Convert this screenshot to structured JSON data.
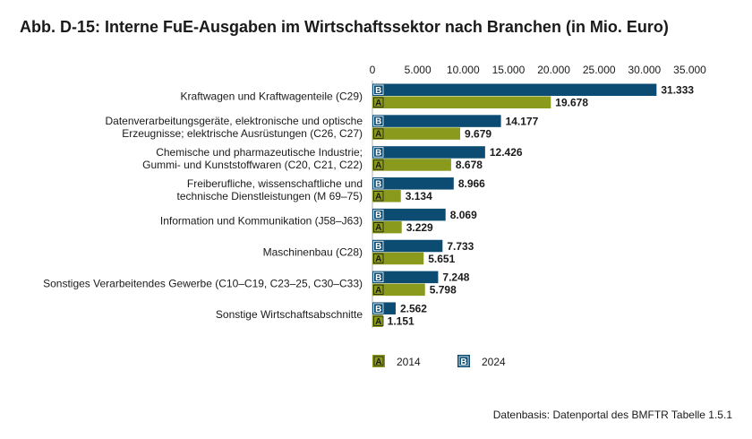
{
  "title": "Abb. D-15: Interne FuE-Ausgaben im Wirtschaftssektor nach Branchen (in Mio. Euro)",
  "source": "Datenbasis: Datenportal des BMFTR Tabelle 1.5.1",
  "colors": {
    "2024": "#0c4c73",
    "2014": "#8a9a1c"
  },
  "chart_data": {
    "type": "bar",
    "orientation": "horizontal",
    "title": "Abb. D-15: Interne FuE-Ausgaben im Wirtschaftssektor nach Branchen (in Mio. Euro)",
    "xlim": [
      0,
      35000
    ],
    "xticks": [
      "0",
      "5.000",
      "10.000",
      "15.000",
      "20.000",
      "25.000",
      "30.000",
      "35.000"
    ],
    "grid": false,
    "legend_position": "bottom-left",
    "categories": [
      [
        "Kraftwagen und Kraftwagenteile (C29)"
      ],
      [
        "Datenverarbeitungsgeräte, elektronische und optische",
        "Erzeugnisse; elektrische Ausrüstungen (C26, C27)"
      ],
      [
        "Chemische und pharmazeutische Industrie;",
        "Gummi- und Kunststoffwaren (C20, C21, C22)"
      ],
      [
        "Freiberufliche, wissenschaftliche und",
        "technische Dienstleistungen (M 69–75)"
      ],
      [
        "Information und Kommunikation (J58–J63)"
      ],
      [
        "Maschinenbau (C28)"
      ],
      [
        "Sonstiges Verarbeitendes Gewerbe (C10–C19, C23–25, C30–C33)"
      ],
      [
        "Sonstige Wirtschaftsabschnitte"
      ]
    ],
    "series": [
      {
        "name": "2024",
        "tag": "B",
        "values": [
          31333,
          14177,
          12426,
          8966,
          8069,
          7733,
          7248,
          2562
        ],
        "labels": [
          "31.333",
          "14.177",
          "12.426",
          "8.966",
          "8.069",
          "7.733",
          "7.248",
          "2.562"
        ]
      },
      {
        "name": "2014",
        "tag": "A",
        "values": [
          19678,
          9679,
          8678,
          3134,
          3229,
          5651,
          5798,
          1151
        ],
        "labels": [
          "19.678",
          "9.679",
          "8.678",
          "3.134",
          "3.229",
          "5.651",
          "5.798",
          "1.151"
        ]
      }
    ],
    "legend": [
      {
        "tag": "A",
        "label": "2014"
      },
      {
        "tag": "B",
        "label": "2024"
      }
    ]
  }
}
